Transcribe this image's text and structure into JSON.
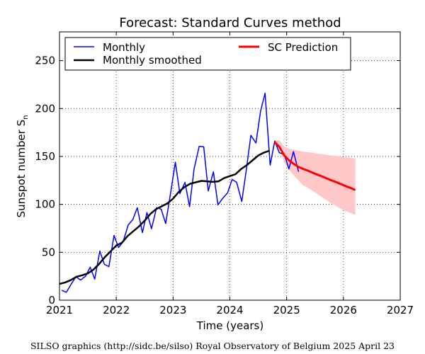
{
  "chart_data": {
    "type": "line",
    "title": "Forecast: Standard Curves method",
    "xlabel": "Time (years)",
    "ylabel": "Sunspot number S",
    "ylabel_subscript": "n",
    "xlim": [
      2021,
      2027
    ],
    "ylim": [
      0,
      280
    ],
    "xticks": [
      "2021",
      "2022",
      "2023",
      "2024",
      "2025",
      "2026",
      "2027"
    ],
    "yticks": [
      "0",
      "50",
      "100",
      "150",
      "200",
      "250"
    ],
    "grid": true,
    "legend_position": "top",
    "colors": {
      "monthly": "#0000ff",
      "smoothed": "#000000",
      "prediction": "#ff0000",
      "band": "#ffc8c8"
    },
    "legend": [
      "Monthly",
      "Monthly smoothed",
      "SC Prediction"
    ],
    "series": [
      {
        "name": "Monthly",
        "x": [
          2021.04,
          2021.12,
          2021.21,
          2021.29,
          2021.37,
          2021.46,
          2021.54,
          2021.62,
          2021.71,
          2021.79,
          2021.87,
          2021.96,
          2022.04,
          2022.12,
          2022.21,
          2022.29,
          2022.37,
          2022.46,
          2022.54,
          2022.62,
          2022.71,
          2022.79,
          2022.87,
          2022.96,
          2023.04,
          2023.12,
          2023.21,
          2023.29,
          2023.37,
          2023.46,
          2023.54,
          2023.62,
          2023.71,
          2023.79,
          2023.87,
          2023.96,
          2024.04,
          2024.12,
          2024.21,
          2024.29,
          2024.37,
          2024.46,
          2024.54,
          2024.62,
          2024.71,
          2024.79,
          2024.87,
          2024.96,
          2025.04,
          2025.12,
          2025.21
        ],
        "values": [
          10.4,
          8.2,
          17.2,
          24.5,
          21.0,
          25.0,
          34.5,
          22.0,
          51.3,
          37.5,
          35.0,
          67.5,
          55.0,
          61.0,
          78.5,
          84.0,
          96.5,
          70.5,
          91.4,
          74.6,
          96.5,
          95.0,
          80.0,
          113.1,
          144.0,
          111.2,
          123.0,
          97.6,
          137.0,
          160.5,
          160.0,
          114.0,
          134.0,
          99.5,
          106.0,
          112.0,
          126.0,
          123.0,
          103.0,
          136.0,
          172.0,
          164.0,
          197.0,
          216.0,
          141.0,
          166.0,
          154.0,
          152.0,
          137.0,
          155.0,
          134.0
        ]
      },
      {
        "name": "Monthly smoothed",
        "x": [
          2021.0,
          2021.1,
          2021.2,
          2021.3,
          2021.4,
          2021.5,
          2021.6,
          2021.7,
          2021.8,
          2021.9,
          2022.0,
          2022.1,
          2022.2,
          2022.3,
          2022.4,
          2022.5,
          2022.6,
          2022.7,
          2022.8,
          2022.9,
          2023.0,
          2023.1,
          2023.2,
          2023.3,
          2023.4,
          2023.5,
          2023.6,
          2023.7,
          2023.8,
          2023.9,
          2024.0,
          2024.1,
          2024.2,
          2024.3,
          2024.4,
          2024.5,
          2024.6,
          2024.7
        ],
        "values": [
          17.0,
          18.5,
          21.0,
          24.5,
          26.0,
          28.0,
          32.0,
          38.0,
          45.0,
          51.0,
          57.0,
          60.0,
          67.0,
          72.0,
          77.0,
          83.0,
          90.0,
          95.0,
          98.0,
          101.0,
          106.0,
          113.0,
          118.0,
          121.5,
          123.0,
          124.5,
          124.0,
          123.5,
          124.0,
          127.5,
          129.5,
          131.5,
          137.0,
          141.0,
          146.0,
          151.0,
          154.0,
          156.0
        ]
      },
      {
        "name": "SC Prediction",
        "x": [
          2024.79,
          2024.87,
          2024.96,
          2025.04,
          2025.13,
          2025.21,
          2025.29,
          2025.38,
          2025.46,
          2025.54,
          2025.63,
          2025.71,
          2025.79,
          2025.88,
          2025.96,
          2026.04,
          2026.13,
          2026.21
        ],
        "values": [
          165.0,
          160.0,
          151.0,
          146.0,
          142.0,
          139.0,
          137.0,
          135.0,
          133.0,
          131.0,
          129.0,
          127.0,
          125.0,
          123.0,
          121.0,
          119.0,
          117.0,
          115.0
        ],
        "upper": [
          167.0,
          167.0,
          160.0,
          158.0,
          157.0,
          156.0,
          155.0,
          154.5,
          154.0,
          153.0,
          152.5,
          151.5,
          151.0,
          150.5,
          150.0,
          149.0,
          148.5,
          148.0
        ],
        "lower": [
          164.0,
          160.0,
          143.0,
          136.0,
          130.0,
          125.0,
          120.0,
          117.0,
          114.0,
          111.0,
          107.0,
          104.0,
          101.0,
          98.0,
          95.0,
          93.0,
          91.0,
          89.0
        ]
      }
    ]
  },
  "footer": "SILSO graphics (http://sidc.be/silso)  Royal Observatory of Belgium  2025 April 23"
}
